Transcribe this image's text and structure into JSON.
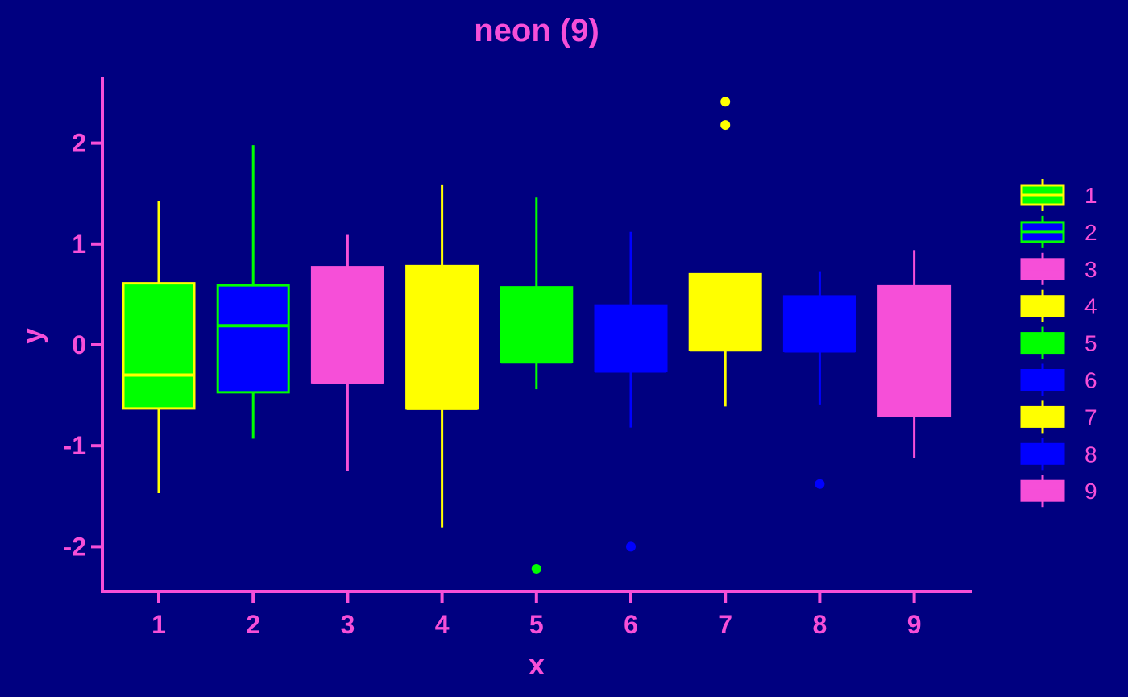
{
  "chart_data": {
    "type": "boxplot",
    "title": "neon (9)",
    "xlabel": "x",
    "ylabel": "y",
    "ylim": [
      -2.45,
      2.65
    ],
    "yticks": [
      -2,
      -1,
      0,
      1,
      2
    ],
    "ytick_labels": [
      "-2",
      "-1",
      "0",
      "1",
      "2"
    ],
    "categories": [
      "1",
      "2",
      "3",
      "4",
      "5",
      "6",
      "7",
      "8",
      "9"
    ],
    "boxes": [
      {
        "x": "1",
        "whisker_low": -1.47,
        "q1": -0.63,
        "median": -0.3,
        "q3": 0.61,
        "whisker_high": 1.43,
        "outliers": []
      },
      {
        "x": "2",
        "whisker_low": -0.93,
        "q1": -0.47,
        "median": 0.19,
        "q3": 0.59,
        "whisker_high": 1.98,
        "outliers": []
      },
      {
        "x": "3",
        "whisker_low": -1.25,
        "q1": -0.37,
        "median": -0.37,
        "q3": 0.77,
        "whisker_high": 1.09,
        "outliers": []
      },
      {
        "x": "4",
        "whisker_low": -1.81,
        "q1": -0.63,
        "median": -0.63,
        "q3": 0.78,
        "whisker_high": 1.59,
        "outliers": []
      },
      {
        "x": "5",
        "whisker_low": -0.44,
        "q1": -0.17,
        "median": -0.17,
        "q3": 0.57,
        "whisker_high": 1.46,
        "outliers": [
          -2.22
        ]
      },
      {
        "x": "6",
        "whisker_low": -0.82,
        "q1": -0.26,
        "median": -0.26,
        "q3": 0.39,
        "whisker_high": 1.12,
        "outliers": [
          -2.0
        ]
      },
      {
        "x": "7",
        "whisker_low": -0.61,
        "q1": -0.05,
        "median": -0.05,
        "q3": 0.7,
        "whisker_high": 0.7,
        "outliers": [
          2.18,
          2.41
        ]
      },
      {
        "x": "8",
        "whisker_low": -0.59,
        "q1": -0.06,
        "median": -0.06,
        "q3": 0.48,
        "whisker_high": 0.73,
        "outliers": [
          -1.38
        ]
      },
      {
        "x": "9",
        "whisker_low": -1.12,
        "q1": -0.7,
        "median": -0.7,
        "q3": 0.58,
        "whisker_high": 0.94,
        "outliers": []
      }
    ],
    "fill_colors": [
      "#00FF00",
      "#0000FF",
      "#F64FD8",
      "#FFFF00",
      "#00FF00",
      "#0000FF",
      "#FFFF00",
      "#0000FF",
      "#F64FD8"
    ],
    "line_colors": [
      "#FFFF00",
      "#00FF00",
      "#F64FD8",
      "#FFFF00",
      "#00FF00",
      "#0000FF",
      "#FFFF00",
      "#0000FF",
      "#F64FD8"
    ],
    "legend": {
      "placement": "right",
      "entries": [
        "1",
        "2",
        "3",
        "4",
        "5",
        "6",
        "7",
        "8",
        "9"
      ]
    },
    "grid": false,
    "background_color": "#000080",
    "text_color": "#F64FD8",
    "axis_color": "#F64FD8"
  }
}
